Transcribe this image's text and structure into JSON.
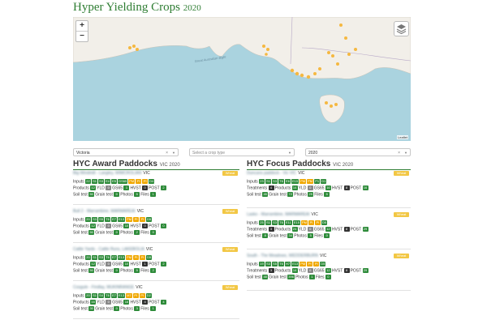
{
  "header": {
    "title": "Hyper Yielding Crops",
    "year": "2020"
  },
  "map": {
    "attribution": "Leaflet",
    "zoom_in": "+",
    "zoom_out": "−",
    "label": "Great Australian Bight"
  },
  "filters": {
    "state": {
      "value": "Victoria",
      "clear": "×"
    },
    "crop": {
      "placeholder": "Select a crop type"
    },
    "year": {
      "value": "2020",
      "clear": "×"
    }
  },
  "award": {
    "title": "HYC Award Paddocks",
    "sub": "VIC 2020",
    "cards": [
      {
        "name": "Big Windmill - Langley, WIMCROLIAN",
        "state": "VIC",
        "crop": "Wheat",
        "inputs": [
          "22",
          "S1",
          "S3",
          "E4",
          "E5",
          "GS65",
          "PM",
          "PI",
          "PI",
          "D4"
        ],
        "products": "12",
        "gs65": "1",
        "hvst": "0",
        "post": "2",
        "soil": "50",
        "grain": "0",
        "photos": "5",
        "files": "1"
      },
      {
        "name": "Bull 2 - Marrambine, MARMAREAI",
        "state": "VIC",
        "crop": "Wheat",
        "inputs": [
          "20",
          "S3",
          "S5",
          "T6",
          "E7",
          "E13",
          "PM",
          "PI",
          "PI",
          "D5"
        ],
        "products": "12",
        "gs65": "10",
        "hvst": "0",
        "post": "0",
        "soil": "50",
        "grain": "0",
        "photos": "2",
        "files": "0"
      },
      {
        "name": "Cattle Yards - Cattle Runs, LAKEBOLIA",
        "state": "VIC",
        "crop": "Wheat",
        "inputs": [
          "20",
          "S1",
          "S3",
          "T6",
          "E7",
          "E13",
          "PM",
          "PI",
          "PI",
          "D5"
        ],
        "products": "12",
        "gs65": "10",
        "hvst": "1",
        "post": "2",
        "soil": "50",
        "grain": "0",
        "photos": "5",
        "files": "2"
      },
      {
        "name": "Cosgule - Findlay, MUKINRANGE",
        "state": "VIC",
        "crop": "Wheat",
        "inputs": [
          "20",
          "S1",
          "S4",
          "T6",
          "E7",
          "E13",
          "M7",
          "PI",
          "PI",
          "D2"
        ],
        "products": "16",
        "gs65": "16",
        "hvst": "4",
        "post": "4",
        "soil": "30",
        "grain": "0",
        "photos": "3",
        "files": "1"
      }
    ]
  },
  "focus": {
    "title": "HYC Focus Paddocks",
    "sub": "VIC 2020",
    "cards": [
      {
        "name": "Duncans paddock - Vic VIC",
        "state": "VIC",
        "crop": "Wheat",
        "inputs": [
          "23",
          "S1",
          "S3",
          "T6",
          "E6",
          "E15",
          "PM",
          "PM",
          "P1",
          "D1"
        ],
        "treatments": "4",
        "products": "14",
        "gs65": "16",
        "hvst": "8",
        "post": "16",
        "soil": "45",
        "grain": "72",
        "photos": "29",
        "files": "5"
      },
      {
        "name": "Lasko - Marrambine, MARMAREAI",
        "state": "VIC",
        "crop": "Wheat",
        "inputs": [
          "25",
          "S1",
          "S3",
          "T6",
          "E11",
          "E15",
          "PM",
          "PI",
          "PI",
          "D5"
        ],
        "treatments": "3",
        "products": "24",
        "gs65": "12",
        "hvst": "8",
        "post": "29",
        "soil": "8",
        "grain": "34",
        "photos": "5",
        "files": "0"
      },
      {
        "name": "South - The Meadows, WEDDERBURN",
        "state": "VIC",
        "crop": "Wheat",
        "inputs": [
          "19",
          "S3",
          "S5",
          "T6",
          "H7",
          "E13",
          "PM",
          "PI",
          "PI",
          "D5"
        ],
        "treatments": "3",
        "products": "14",
        "gs65": "12",
        "hvst": "8",
        "post": "29",
        "soil": "48",
        "grain": "396",
        "photos": "1",
        "files": "0"
      }
    ]
  },
  "labels": {
    "inputs": "Inputs",
    "products": "Products",
    "treatments": "Treatments",
    "yld": "YLD",
    "gs65": "GS65",
    "hvst": "HVST",
    "post": "POST",
    "soil": "Soil test",
    "grain": "Grain test",
    "photos": "Photos",
    "files": "Files"
  },
  "colors": {
    "brand": "#2e7d32",
    "badge_green": "#2e8b3a",
    "badge_amber": "#f0a800",
    "crop_tag": "#f2c744",
    "map_water": "#aad3df",
    "map_land": "#f2efe9",
    "site_marker": "#f5b841"
  }
}
